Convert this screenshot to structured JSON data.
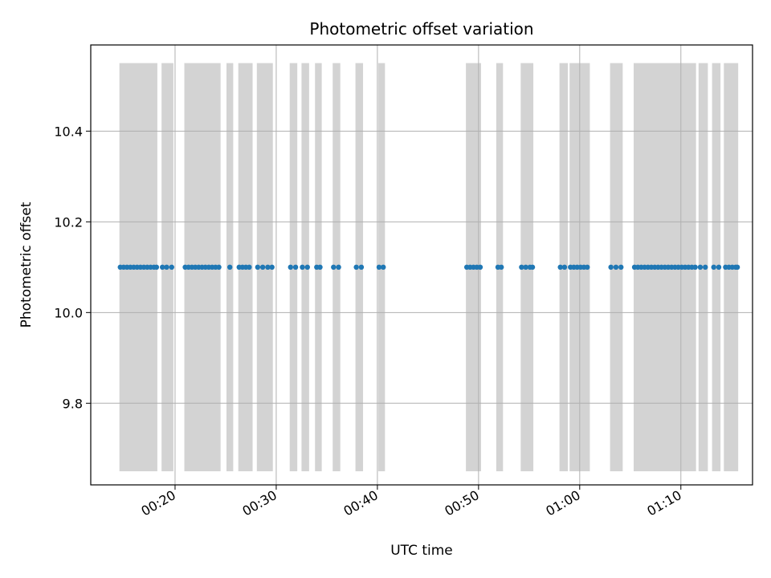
{
  "chart_data": {
    "type": "scatter",
    "title": "Photometric offset variation",
    "xlabel": "UTC time",
    "ylabel": "Photometric offset",
    "x_unit": "UTC hh:mm",
    "xlim": [
      "00:11:40",
      "01:17:05"
    ],
    "ylim": [
      9.62,
      10.59
    ],
    "x_ticks": [
      "00:20",
      "00:30",
      "00:40",
      "00:50",
      "01:00",
      "01:10"
    ],
    "y_ticks": [
      9.8,
      10.0,
      10.2,
      10.4
    ],
    "y_tick_labels": [
      "9.8",
      "10.0",
      "10.2",
      "10.4"
    ],
    "grid": true,
    "marker_color": "#1f77b4",
    "band_color": "#d3d3d3",
    "shaded_intervals": {
      "y_range": [
        9.65,
        10.55
      ],
      "intervals": [
        [
          "00:14:30",
          "00:18:15"
        ],
        [
          "00:18:40",
          "00:19:50"
        ],
        [
          "00:20:55",
          "00:24:30"
        ],
        [
          "00:25:05",
          "00:25:45"
        ],
        [
          "00:26:15",
          "00:27:40"
        ],
        [
          "00:28:05",
          "00:29:40"
        ],
        [
          "00:31:20",
          "00:32:05"
        ],
        [
          "00:32:30",
          "00:33:15"
        ],
        [
          "00:33:50",
          "00:34:30"
        ],
        [
          "00:35:35",
          "00:36:20"
        ],
        [
          "00:37:50",
          "00:38:35"
        ],
        [
          "00:40:05",
          "00:40:45"
        ],
        [
          "00:48:45",
          "00:50:15"
        ],
        [
          "00:51:45",
          "00:52:25"
        ],
        [
          "00:54:10",
          "00:55:25"
        ],
        [
          "00:58:00",
          "00:58:50"
        ],
        [
          "00:59:00",
          "01:01:00"
        ],
        [
          "01:03:00",
          "01:04:15"
        ],
        [
          "01:05:20",
          "01:11:30"
        ],
        [
          "01:11:45",
          "01:12:40"
        ],
        [
          "01:13:05",
          "01:13:55"
        ],
        [
          "01:14:15",
          "01:15:40"
        ]
      ]
    },
    "series": [
      {
        "y": 10.1,
        "x": [
          "00:14:35",
          "00:14:55",
          "00:15:15",
          "00:15:35",
          "00:15:55",
          "00:16:15",
          "00:16:35",
          "00:16:55",
          "00:17:15",
          "00:17:35",
          "00:17:55",
          "00:18:10",
          "00:18:45",
          "00:19:10",
          "00:19:40",
          "00:21:00",
          "00:21:20",
          "00:21:40",
          "00:22:00",
          "00:22:20",
          "00:22:40",
          "00:23:00",
          "00:23:20",
          "00:23:40",
          "00:24:00",
          "00:24:20",
          "00:25:25",
          "00:26:20",
          "00:26:40",
          "00:27:00",
          "00:27:20",
          "00:28:10",
          "00:28:40",
          "00:29:10",
          "00:29:35",
          "00:31:25",
          "00:31:55",
          "00:32:35",
          "00:33:05",
          "00:34:00",
          "00:34:20",
          "00:35:40",
          "00:36:10",
          "00:37:55",
          "00:38:25",
          "00:40:10",
          "00:40:35",
          "00:48:50",
          "00:49:10",
          "00:49:30",
          "00:49:50",
          "00:50:10",
          "00:51:55",
          "00:52:15",
          "00:54:15",
          "00:54:40",
          "00:55:05",
          "00:55:20",
          "00:58:05",
          "00:58:30",
          "00:59:05",
          "00:59:25",
          "00:59:45",
          "01:00:05",
          "01:00:25",
          "01:00:45",
          "01:03:05",
          "01:03:35",
          "01:04:05",
          "01:05:25",
          "01:05:45",
          "01:06:05",
          "01:06:25",
          "01:06:45",
          "01:07:05",
          "01:07:25",
          "01:07:45",
          "01:08:05",
          "01:08:25",
          "01:08:45",
          "01:09:05",
          "01:09:25",
          "01:09:45",
          "01:10:05",
          "01:10:25",
          "01:10:45",
          "01:11:05",
          "01:11:25",
          "01:11:55",
          "01:12:25",
          "01:13:15",
          "01:13:45",
          "01:14:25",
          "01:14:45",
          "01:15:05",
          "01:15:25",
          "01:15:35"
        ]
      }
    ]
  }
}
